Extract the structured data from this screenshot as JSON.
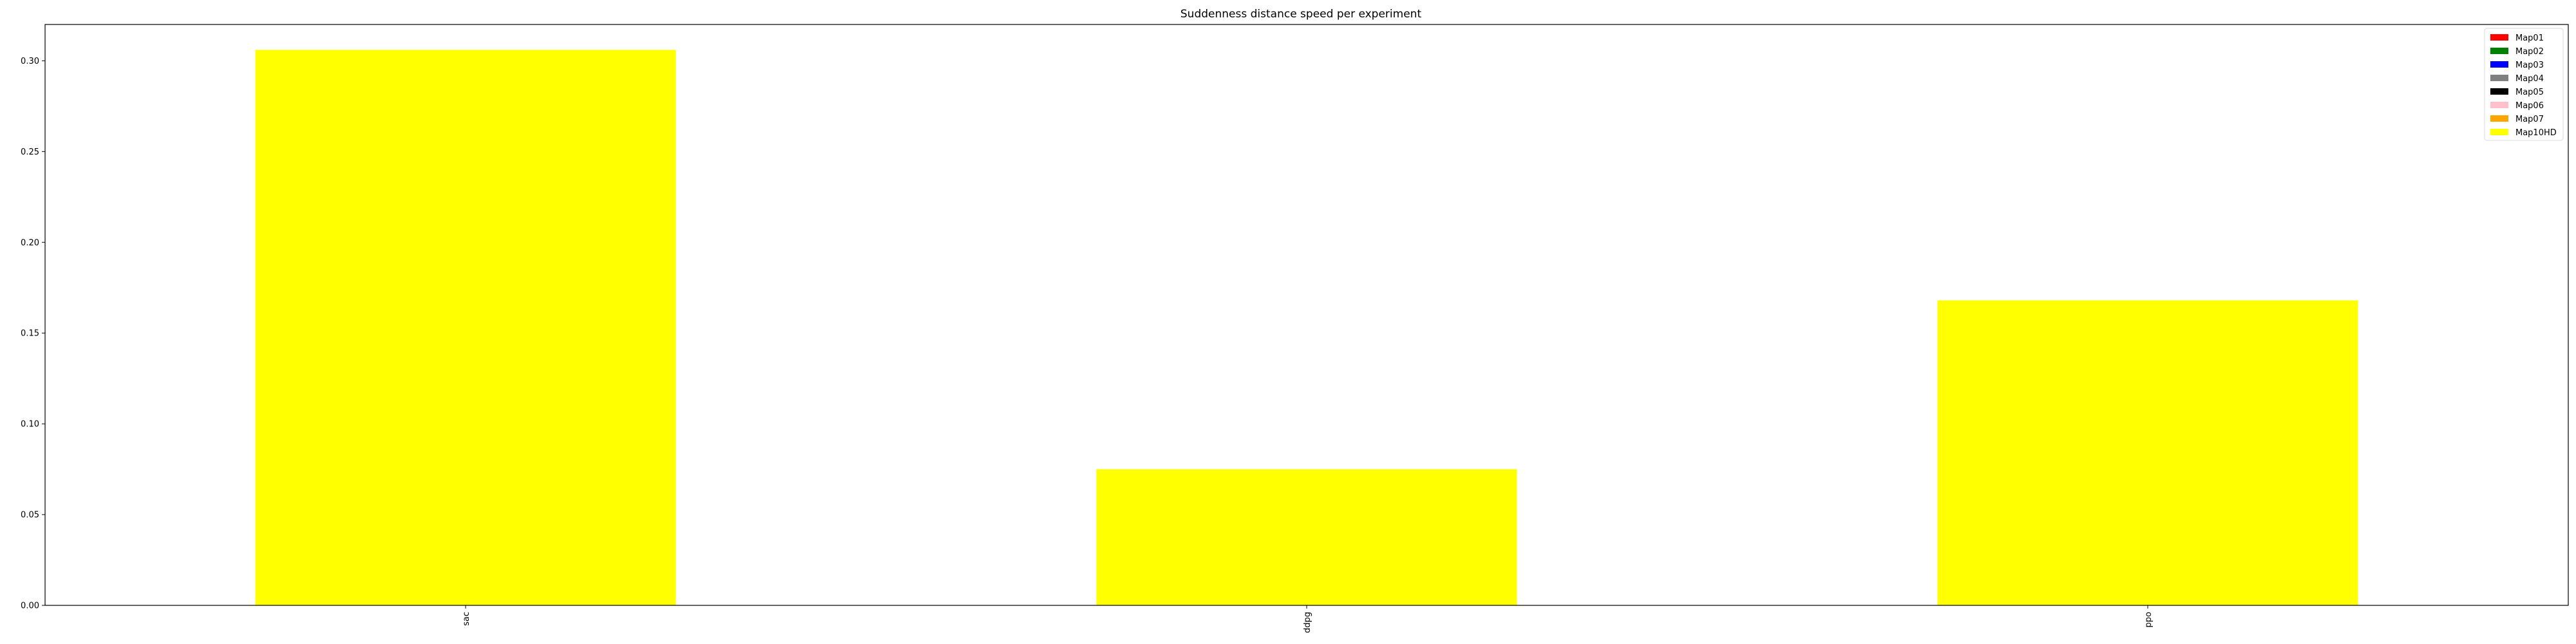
{
  "chart_data": {
    "type": "bar",
    "title": "Suddenness distance speed per experiment",
    "xlabel": "",
    "ylabel": "",
    "categories": [
      "sac",
      "ddpg",
      "ppo"
    ],
    "series": [
      {
        "name": "Map01",
        "color": "#ff0000",
        "values": [
          0,
          0,
          0
        ]
      },
      {
        "name": "Map02",
        "color": "#008000",
        "values": [
          0,
          0,
          0
        ]
      },
      {
        "name": "Map03",
        "color": "#0000ff",
        "values": [
          0,
          0,
          0
        ]
      },
      {
        "name": "Map04",
        "color": "#808080",
        "values": [
          0,
          0,
          0
        ]
      },
      {
        "name": "Map05",
        "color": "#000000",
        "values": [
          0,
          0,
          0
        ]
      },
      {
        "name": "Map06",
        "color": "#ffc0cb",
        "values": [
          0,
          0,
          0
        ]
      },
      {
        "name": "Map07",
        "color": "#ffa500",
        "values": [
          0,
          0,
          0
        ]
      },
      {
        "name": "Map10HD",
        "color": "#ffff00",
        "values": [
          0.306,
          0.075,
          0.168
        ]
      }
    ],
    "ylim": [
      0,
      0.32
    ],
    "yticks": [
      "0.00",
      "0.05",
      "0.10",
      "0.15",
      "0.20",
      "0.25",
      "0.30"
    ],
    "legend_position": "top-right",
    "grid": false
  }
}
